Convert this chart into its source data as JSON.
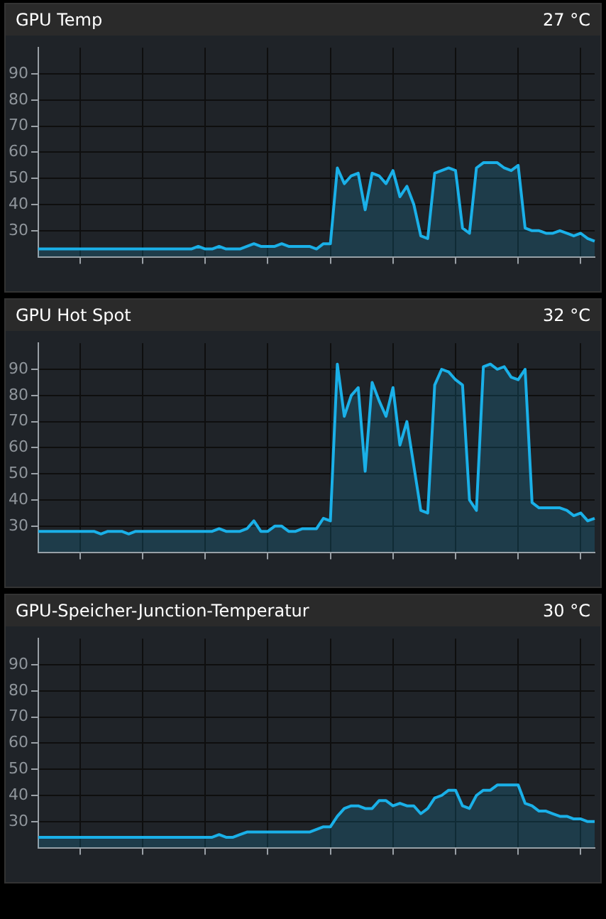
{
  "chart_data": [
    {
      "type": "area",
      "title": "GPU Temp",
      "annotations": [
        "27 °C"
      ],
      "tick_labels": "y",
      "grid": true,
      "categories": [
        null,
        null,
        null,
        null,
        null,
        null,
        null,
        null,
        null,
        null,
        null,
        null,
        null,
        null,
        null,
        null,
        null,
        null,
        null,
        null,
        null,
        null,
        null,
        null,
        null,
        null,
        null,
        null,
        null,
        null,
        null,
        null,
        null,
        null,
        null,
        null,
        null,
        null,
        null,
        null,
        null,
        null,
        null,
        null,
        null,
        null,
        null,
        null,
        null,
        null,
        null,
        null,
        null,
        null,
        null,
        null,
        null,
        null,
        null,
        null,
        null,
        null,
        null,
        null,
        null,
        null,
        null,
        null,
        null,
        null,
        null,
        null,
        null,
        null,
        null,
        null,
        null,
        null,
        null,
        null,
        null
      ],
      "ylim": [
        20,
        100
      ],
      "yticks": [
        30,
        40,
        50,
        60,
        70,
        80,
        90
      ],
      "series": [
        {
          "color": "#1ab0e8",
          "values": [
            23,
            23,
            23,
            23,
            23,
            23,
            23,
            23,
            23,
            23,
            23,
            23,
            23,
            23,
            23,
            23,
            23,
            23,
            23,
            23,
            23,
            23,
            23,
            24,
            23,
            23,
            24,
            23,
            23,
            23,
            24,
            25,
            24,
            24,
            24,
            25,
            24,
            24,
            24,
            24,
            23,
            25,
            25,
            54,
            48,
            51,
            52,
            38,
            52,
            51,
            48,
            53,
            43,
            47,
            40,
            28,
            27,
            52,
            53,
            54,
            53,
            31,
            29,
            54,
            56,
            56,
            56,
            54,
            53,
            55,
            31,
            30,
            30,
            29,
            29,
            30,
            29,
            28,
            29,
            27,
            26
          ]
        }
      ]
    },
    {
      "type": "area",
      "title": "GPU Hot Spot",
      "annotations": [
        "32 °C"
      ],
      "tick_labels": "y",
      "grid": true,
      "categories": [
        null,
        null,
        null,
        null,
        null,
        null,
        null,
        null,
        null,
        null,
        null,
        null,
        null,
        null,
        null,
        null,
        null,
        null,
        null,
        null,
        null,
        null,
        null,
        null,
        null,
        null,
        null,
        null,
        null,
        null,
        null,
        null,
        null,
        null,
        null,
        null,
        null,
        null,
        null,
        null,
        null,
        null,
        null,
        null,
        null,
        null,
        null,
        null,
        null,
        null,
        null,
        null,
        null,
        null,
        null,
        null,
        null,
        null,
        null,
        null,
        null,
        null,
        null,
        null,
        null,
        null,
        null,
        null,
        null,
        null,
        null,
        null,
        null,
        null,
        null,
        null,
        null,
        null,
        null,
        null,
        null
      ],
      "ylim": [
        20,
        100
      ],
      "yticks": [
        30,
        40,
        50,
        60,
        70,
        80,
        90
      ],
      "series": [
        {
          "color": "#1ab0e8",
          "values": [
            28,
            28,
            28,
            28,
            28,
            28,
            28,
            28,
            28,
            27,
            28,
            28,
            28,
            27,
            28,
            28,
            28,
            28,
            28,
            28,
            28,
            28,
            28,
            28,
            28,
            28,
            29,
            28,
            28,
            28,
            29,
            32,
            28,
            28,
            30,
            30,
            28,
            28,
            29,
            29,
            29,
            33,
            32,
            92,
            72,
            80,
            83,
            51,
            85,
            78,
            72,
            83,
            61,
            70,
            53,
            36,
            35,
            84,
            90,
            89,
            86,
            84,
            40,
            36,
            91,
            92,
            90,
            91,
            87,
            86,
            90,
            39,
            37,
            37,
            37,
            37,
            36,
            34,
            35,
            32,
            33
          ]
        }
      ]
    },
    {
      "type": "area",
      "title": "GPU-Speicher-Junction-Temperatur",
      "annotations": [
        "30 °C"
      ],
      "tick_labels": "y",
      "grid": true,
      "categories": [
        null,
        null,
        null,
        null,
        null,
        null,
        null,
        null,
        null,
        null,
        null,
        null,
        null,
        null,
        null,
        null,
        null,
        null,
        null,
        null,
        null,
        null,
        null,
        null,
        null,
        null,
        null,
        null,
        null,
        null,
        null,
        null,
        null,
        null,
        null,
        null,
        null,
        null,
        null,
        null,
        null,
        null,
        null,
        null,
        null,
        null,
        null,
        null,
        null,
        null,
        null,
        null,
        null,
        null,
        null,
        null,
        null,
        null,
        null,
        null,
        null,
        null,
        null,
        null,
        null,
        null,
        null,
        null,
        null,
        null,
        null,
        null,
        null,
        null,
        null,
        null,
        null,
        null,
        null,
        null,
        null
      ],
      "ylim": [
        20,
        100
      ],
      "yticks": [
        30,
        40,
        50,
        60,
        70,
        80,
        90
      ],
      "series": [
        {
          "color": "#1ab0e8",
          "values": [
            24,
            24,
            24,
            24,
            24,
            24,
            24,
            24,
            24,
            24,
            24,
            24,
            24,
            24,
            24,
            24,
            24,
            24,
            24,
            24,
            24,
            24,
            24,
            24,
            24,
            24,
            25,
            24,
            24,
            25,
            26,
            26,
            26,
            26,
            26,
            26,
            26,
            26,
            26,
            26,
            27,
            28,
            28,
            32,
            35,
            36,
            36,
            35,
            35,
            38,
            38,
            36,
            37,
            36,
            36,
            33,
            35,
            39,
            40,
            42,
            42,
            36,
            35,
            40,
            42,
            42,
            44,
            44,
            44,
            44,
            37,
            36,
            34,
            34,
            33,
            32,
            32,
            31,
            31,
            30,
            30
          ]
        }
      ]
    }
  ]
}
